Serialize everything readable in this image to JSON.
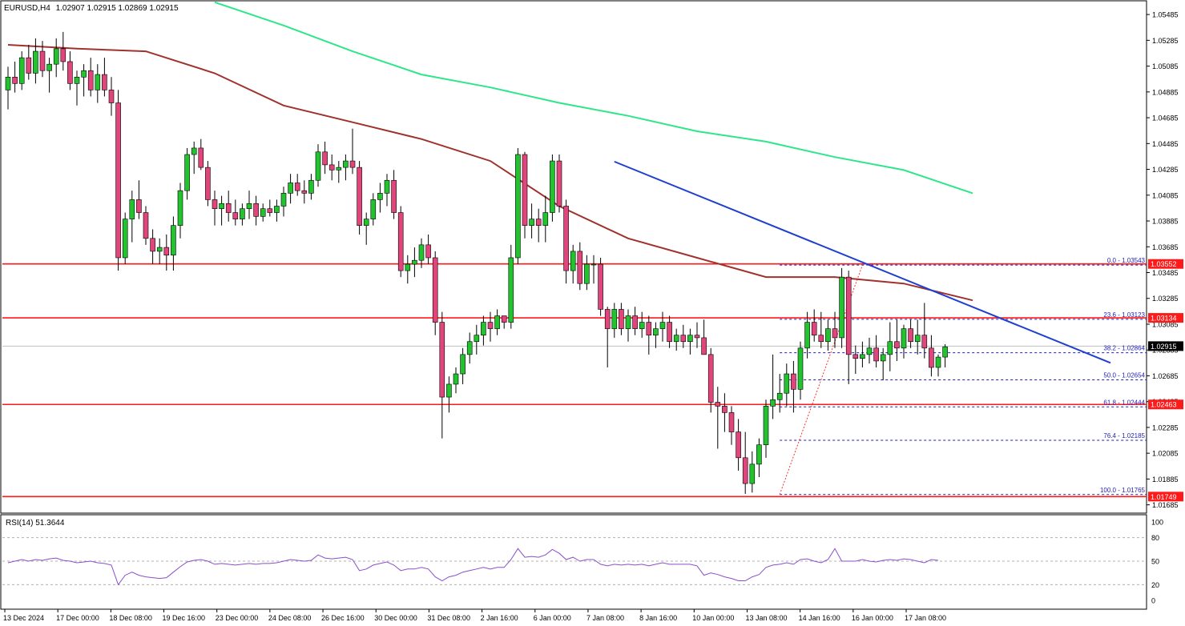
{
  "header": {
    "symbol": "EURUSD,H4",
    "ohlc": "1.02907 1.02915 1.02869 1.02915"
  },
  "colors": {
    "bull": "#22c32e",
    "bear": "#e0457b",
    "wick": "#000000",
    "ma_fast": "#a0322d",
    "ma_slow": "#2ee68a",
    "trendline": "#1f3fcf",
    "level": "#ff1a1a",
    "fib": "#1e1ebc",
    "rsi": "#8a4fc9",
    "price_box": "#000000",
    "level_box": "#ff1a1a"
  },
  "chart_data": [
    {
      "type": "line",
      "title": "EURUSD,H4",
      "price_axis": {
        "ylim": [
          1.01627,
          1.05585
        ],
        "ticks": [
          "1.05485",
          "1.05285",
          "1.05085",
          "1.04885",
          "1.04685",
          "1.04485",
          "1.04285",
          "1.04085",
          "1.03885",
          "1.03685",
          "1.03485",
          "1.03285",
          "1.03085",
          "1.02885",
          "1.02685",
          "1.02485",
          "1.02285",
          "1.02085",
          "1.01885",
          "1.01685"
        ]
      },
      "x_ticks": [
        "13 Dec 2024",
        "17 Dec 00:00",
        "18 Dec 08:00",
        "19 Dec 16:00",
        "23 Dec 00:00",
        "24 Dec 08:00",
        "26 Dec 16:00",
        "30 Dec 00:00",
        "31 Dec 08:00",
        "2 Jan 16:00",
        "6 Jan 00:00",
        "7 Jan 08:00",
        "8 Jan 16:00",
        "10 Jan 00:00",
        "13 Jan 08:00",
        "14 Jan 16:00",
        "16 Jan 00:00",
        "17 Jan 08:00"
      ],
      "candles": [
        [
          1.049,
          1.0508,
          1.0475,
          1.05
        ],
        [
          1.05,
          1.0512,
          1.0488,
          1.0495
        ],
        [
          1.0495,
          1.052,
          1.049,
          1.0515
        ],
        [
          1.0515,
          1.0525,
          1.0498,
          1.0503
        ],
        [
          1.0503,
          1.053,
          1.0495,
          1.052
        ],
        [
          1.052,
          1.0528,
          1.05,
          1.0505
        ],
        [
          1.0505,
          1.0515,
          1.0488,
          1.051
        ],
        [
          1.051,
          1.053,
          1.05,
          1.0522
        ],
        [
          1.0522,
          1.0535,
          1.0505,
          1.0512
        ],
        [
          1.0512,
          1.052,
          1.049,
          1.0495
        ],
        [
          1.0495,
          1.0505,
          1.0478,
          1.05
        ],
        [
          1.05,
          1.051,
          1.0485,
          1.0505
        ],
        [
          1.0505,
          1.0515,
          1.0485,
          1.049
        ],
        [
          1.049,
          1.051,
          1.048,
          1.0502
        ],
        [
          1.0502,
          1.0515,
          1.0485,
          1.049
        ],
        [
          1.049,
          1.05,
          1.047,
          1.048
        ],
        [
          1.048,
          1.049,
          1.035,
          1.036
        ],
        [
          1.036,
          1.0395,
          1.0355,
          1.039
        ],
        [
          1.039,
          1.0412,
          1.0372,
          1.0405
        ],
        [
          1.0405,
          1.042,
          1.039,
          1.0395
        ],
        [
          1.0395,
          1.04,
          1.037,
          1.0375
        ],
        [
          1.0375,
          1.0382,
          1.0355,
          1.0365
        ],
        [
          1.0365,
          1.0375,
          1.0355,
          1.0368
        ],
        [
          1.0368,
          1.0378,
          1.035,
          1.0362
        ],
        [
          1.0362,
          1.0392,
          1.035,
          1.0385
        ],
        [
          1.0385,
          1.0418,
          1.0375,
          1.0412
        ],
        [
          1.0412,
          1.0445,
          1.0405,
          1.044
        ],
        [
          1.044,
          1.045,
          1.0425,
          1.0445
        ],
        [
          1.0445,
          1.0452,
          1.0428,
          1.043
        ],
        [
          1.043,
          1.0435,
          1.04,
          1.0405
        ],
        [
          1.0405,
          1.0412,
          1.0385,
          1.0398
        ],
        [
          1.0398,
          1.0408,
          1.0385,
          1.0402
        ],
        [
          1.0402,
          1.0412,
          1.0388,
          1.0395
        ],
        [
          1.0395,
          1.0405,
          1.0385,
          1.039
        ],
        [
          1.039,
          1.0402,
          1.0385,
          1.0398
        ],
        [
          1.0398,
          1.0412,
          1.039,
          1.0402
        ],
        [
          1.0402,
          1.0408,
          1.0385,
          1.0392
        ],
        [
          1.0392,
          1.0402,
          1.0388,
          1.0398
        ],
        [
          1.0398,
          1.0405,
          1.0392,
          1.0395
        ],
        [
          1.0395,
          1.0405,
          1.0388,
          1.04
        ],
        [
          1.04,
          1.0415,
          1.0392,
          1.041
        ],
        [
          1.041,
          1.0425,
          1.0402,
          1.0418
        ],
        [
          1.0418,
          1.0425,
          1.0408,
          1.0412
        ],
        [
          1.0412,
          1.042,
          1.0402,
          1.041
        ],
        [
          1.041,
          1.0425,
          1.0405,
          1.042
        ],
        [
          1.042,
          1.0448,
          1.0415,
          1.0442
        ],
        [
          1.0442,
          1.045,
          1.0425,
          1.0432
        ],
        [
          1.0432,
          1.044,
          1.042,
          1.0428
        ],
        [
          1.0428,
          1.0435,
          1.0418,
          1.043
        ],
        [
          1.043,
          1.044,
          1.042,
          1.0435
        ],
        [
          1.0435,
          1.046,
          1.0425,
          1.043
        ],
        [
          1.043,
          1.0435,
          1.0378,
          1.0385
        ],
        [
          1.0385,
          1.0395,
          1.037,
          1.039
        ],
        [
          1.039,
          1.041,
          1.0385,
          1.0405
        ],
        [
          1.0405,
          1.0418,
          1.0395,
          1.041
        ],
        [
          1.041,
          1.0425,
          1.04,
          1.042
        ],
        [
          1.042,
          1.0428,
          1.039,
          1.0395
        ],
        [
          1.0395,
          1.04,
          1.0345,
          1.035
        ],
        [
          1.035,
          1.0362,
          1.034,
          1.0355
        ],
        [
          1.0355,
          1.0368,
          1.0345,
          1.0358
        ],
        [
          1.0358,
          1.0375,
          1.0352,
          1.037
        ],
        [
          1.037,
          1.0378,
          1.0355,
          1.036
        ],
        [
          1.036,
          1.0365,
          1.03,
          1.031
        ],
        [
          1.031,
          1.0318,
          1.022,
          1.0252
        ],
        [
          1.0252,
          1.0268,
          1.024,
          1.0262
        ],
        [
          1.0262,
          1.0275,
          1.0255,
          1.027
        ],
        [
          1.027,
          1.029,
          1.0262,
          1.0285
        ],
        [
          1.0285,
          1.0302,
          1.0278,
          1.0295
        ],
        [
          1.0295,
          1.0308,
          1.0285,
          1.03
        ],
        [
          1.03,
          1.0315,
          1.0292,
          1.031
        ],
        [
          1.031,
          1.0318,
          1.0295,
          1.0305
        ],
        [
          1.0305,
          1.032,
          1.03,
          1.0315
        ],
        [
          1.0315,
          1.0315,
          1.0305,
          1.031
        ],
        [
          1.031,
          1.037,
          1.0305,
          1.036
        ],
        [
          1.036,
          1.0445,
          1.0355,
          1.044
        ],
        [
          1.044,
          1.0442,
          1.0375,
          1.0385
        ],
        [
          1.0385,
          1.0402,
          1.0375,
          1.039
        ],
        [
          1.039,
          1.0398,
          1.0372,
          1.0385
        ],
        [
          1.0385,
          1.0408,
          1.0372,
          1.0395
        ],
        [
          1.0395,
          1.044,
          1.0388,
          1.0435
        ],
        [
          1.0435,
          1.044,
          1.0395,
          1.04
        ],
        [
          1.04,
          1.0405,
          1.034,
          1.035
        ],
        [
          1.035,
          1.037,
          1.034,
          1.0365
        ],
        [
          1.0365,
          1.0372,
          1.0335,
          1.034
        ],
        [
          1.034,
          1.0362,
          1.0335,
          1.0355
        ],
        [
          1.0355,
          1.0362,
          1.034,
          1.0355
        ],
        [
          1.0355,
          1.036,
          1.0315,
          1.032
        ],
        [
          1.032,
          1.0322,
          1.0275,
          1.0305
        ],
        [
          1.0305,
          1.0325,
          1.0298,
          1.032
        ],
        [
          1.032,
          1.0325,
          1.03,
          1.0305
        ],
        [
          1.0305,
          1.032,
          1.0295,
          1.0315
        ],
        [
          1.0315,
          1.0322,
          1.03,
          1.0305
        ],
        [
          1.0305,
          1.0318,
          1.0298,
          1.031
        ],
        [
          1.031,
          1.0315,
          1.0285,
          1.03
        ],
        [
          1.03,
          1.031,
          1.029,
          1.0305
        ],
        [
          1.0305,
          1.0318,
          1.0295,
          1.031
        ],
        [
          1.031,
          1.0315,
          1.029,
          1.0295
        ],
        [
          1.0295,
          1.0305,
          1.0288,
          1.03
        ],
        [
          1.03,
          1.0308,
          1.029,
          1.0295
        ],
        [
          1.0295,
          1.0305,
          1.0285,
          1.03
        ],
        [
          1.03,
          1.031,
          1.029,
          1.0298
        ],
        [
          1.0298,
          1.0312,
          1.0285,
          1.0285
        ],
        [
          1.0285,
          1.029,
          1.024,
          1.0248
        ],
        [
          1.0248,
          1.026,
          1.0212,
          1.0245
        ],
        [
          1.0245,
          1.0255,
          1.0225,
          1.024
        ],
        [
          1.024,
          1.0245,
          1.0215,
          1.0225
        ],
        [
          1.0225,
          1.0235,
          1.0195,
          1.0205
        ],
        [
          1.0205,
          1.0225,
          1.0177,
          1.0185
        ],
        [
          1.0185,
          1.021,
          1.0178,
          1.02
        ],
        [
          1.02,
          1.022,
          1.019,
          1.0215
        ],
        [
          1.0215,
          1.025,
          1.0205,
          1.0245
        ],
        [
          1.0245,
          1.0285,
          1.0235,
          1.025
        ],
        [
          1.025,
          1.027,
          1.024,
          1.0255
        ],
        [
          1.0255,
          1.0278,
          1.0245,
          1.027
        ],
        [
          1.027,
          1.028,
          1.024,
          1.0258
        ],
        [
          1.0258,
          1.0295,
          1.025,
          1.029
        ],
        [
          1.029,
          1.0318,
          1.0282,
          1.031
        ],
        [
          1.031,
          1.032,
          1.0295,
          1.03
        ],
        [
          1.03,
          1.0318,
          1.029,
          1.0295
        ],
        [
          1.0295,
          1.0312,
          1.0288,
          1.0305
        ],
        [
          1.0305,
          1.0318,
          1.029,
          1.0298
        ],
        [
          1.0298,
          1.0352,
          1.029,
          1.0345
        ],
        [
          1.0345,
          1.035,
          1.0262,
          1.0285
        ],
        [
          1.0285,
          1.0292,
          1.027,
          1.0282
        ],
        [
          1.0282,
          1.0295,
          1.0275,
          1.0285
        ],
        [
          1.0285,
          1.0298,
          1.0278,
          1.029
        ],
        [
          1.029,
          1.03,
          1.0275,
          1.028
        ],
        [
          1.028,
          1.029,
          1.0265,
          1.0285
        ],
        [
          1.0285,
          1.031,
          1.0272,
          1.0295
        ],
        [
          1.0295,
          1.0312,
          1.028,
          1.029
        ],
        [
          1.029,
          1.0308,
          1.0282,
          1.0305
        ],
        [
          1.0305,
          1.0312,
          1.029,
          1.0295
        ],
        [
          1.0295,
          1.0312,
          1.0285,
          1.03
        ],
        [
          1.03,
          1.0325,
          1.0282,
          1.029
        ],
        [
          1.029,
          1.03,
          1.0268,
          1.0275
        ],
        [
          1.0275,
          1.0285,
          1.0268,
          1.0283
        ],
        [
          1.0283,
          1.0293,
          1.0275,
          1.0291
        ]
      ],
      "moving_averages": [
        {
          "name": "",
          "color": "#a0322d",
          "x": [
            0,
            10,
            20,
            30,
            40,
            50,
            60,
            70,
            80,
            90,
            100,
            110,
            120,
            130,
            140
          ],
          "y": [
            1.0525,
            1.0522,
            1.052,
            1.0503,
            1.0478,
            1.0465,
            1.0452,
            1.0435,
            1.04,
            1.0375,
            1.036,
            1.0345,
            1.0345,
            1.034,
            1.0327
          ]
        },
        {
          "name": "",
          "color": "#2ee68a",
          "x": [
            30,
            40,
            50,
            60,
            70,
            80,
            90,
            100,
            110,
            120,
            130,
            140
          ],
          "y": [
            1.0558,
            1.054,
            1.052,
            1.0502,
            1.0492,
            1.048,
            1.047,
            1.0458,
            1.045,
            1.0438,
            1.0428,
            1.041
          ]
        }
      ],
      "trendline": {
        "from": [
          88,
          1.04345
        ],
        "to": [
          160,
          1.02785
        ]
      },
      "levels": [
        {
          "value": 1.03552,
          "label": "1.03552"
        },
        {
          "value": 1.03134,
          "label": "1.03134"
        },
        {
          "value": 1.02463,
          "label": "1.02463"
        },
        {
          "value": 1.01749,
          "label": "1.01749"
        }
      ],
      "current_price": {
        "value": 1.02915,
        "label": "1.02915"
      },
      "fibonacci": {
        "start_x": 112,
        "end_x": 180,
        "levels": [
          {
            "value": 1.03543,
            "label": "0.0 - 1.03543"
          },
          {
            "value": 1.03123,
            "label": "23.6 - 1.03123"
          },
          {
            "value": 1.02864,
            "label": "38.2 - 1.02864"
          },
          {
            "value": 1.02654,
            "label": "50.0 - 1.02654"
          },
          {
            "value": 1.02444,
            "label": "61.8 - 1.02444"
          },
          {
            "value": 1.02185,
            "label": "76.4 - 1.02185"
          },
          {
            "value": 1.01765,
            "label": "100.0 - 1.01765"
          }
        ]
      }
    },
    {
      "type": "line",
      "title": "RSI(14) 51.3644",
      "ylim": [
        0,
        100
      ],
      "ticks": [
        "100",
        "80",
        "50",
        "20",
        "0"
      ],
      "series": [
        {
          "name": "RSI(14)",
          "values": [
            48,
            50,
            52,
            50,
            52,
            51,
            53,
            54,
            51,
            50,
            48,
            49,
            50,
            48,
            47,
            45,
            20,
            32,
            36,
            32,
            30,
            29,
            28,
            29,
            36,
            43,
            49,
            51,
            52,
            50,
            46,
            47,
            46,
            45,
            46,
            47,
            46,
            47,
            47,
            48,
            50,
            52,
            51,
            50,
            51,
            58,
            54,
            53,
            54,
            55,
            52,
            38,
            40,
            45,
            47,
            49,
            45,
            38,
            40,
            40,
            42,
            40,
            30,
            25,
            30,
            32,
            36,
            38,
            40,
            42,
            40,
            42,
            42,
            52,
            66,
            55,
            56,
            55,
            58,
            65,
            60,
            52,
            55,
            50,
            52,
            52,
            46,
            44,
            46,
            45,
            46,
            45,
            46,
            44,
            46,
            48,
            46,
            46,
            46,
            46,
            44,
            32,
            35,
            33,
            30,
            28,
            25,
            25,
            30,
            33,
            42,
            45,
            46,
            48,
            46,
            52,
            53,
            50,
            48,
            52,
            66,
            50,
            50,
            50,
            52,
            50,
            49,
            51,
            52,
            51,
            53,
            52,
            50,
            48,
            52,
            51
          ]
        }
      ]
    }
  ]
}
